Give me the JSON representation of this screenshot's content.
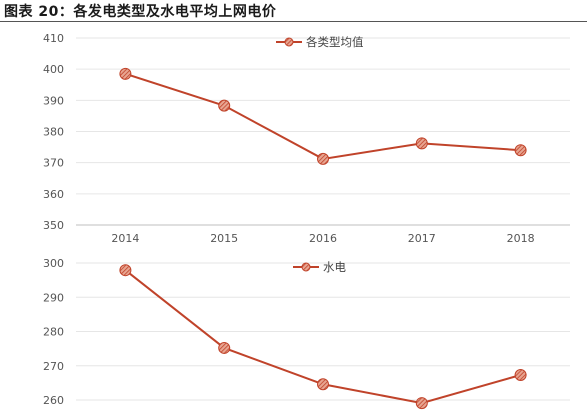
{
  "figure": {
    "title": "图表 20：各发电类型及水电平均上网电价"
  },
  "chart_data": [
    {
      "type": "line",
      "x": [
        2014,
        2015,
        2016,
        2017,
        2018
      ],
      "x_tick_labels": [
        "2014",
        "2015",
        "2016",
        "2017",
        "2018"
      ],
      "series": [
        {
          "name": "各类型均值",
          "values": [
            398.5,
            388.3,
            371.2,
            376.2,
            374.0
          ],
          "color": "#c0432a"
        }
      ],
      "ylim": [
        350,
        410
      ],
      "y_ticks": [
        350,
        360,
        370,
        380,
        390,
        400,
        410
      ],
      "grid": true,
      "legend": "top-center",
      "marker": "hatched-circle"
    },
    {
      "type": "line",
      "x": [
        2014,
        2015,
        2016,
        2017,
        2018
      ],
      "series": [
        {
          "name": "水电",
          "values": [
            297.9,
            275.2,
            264.6,
            259.1,
            267.3
          ],
          "color": "#c0432a"
        }
      ],
      "ylim": [
        260,
        300
      ],
      "y_ticks": [
        260,
        270,
        280,
        290,
        300
      ],
      "grid": true,
      "legend": "top-center",
      "marker": "hatched-circle"
    }
  ]
}
